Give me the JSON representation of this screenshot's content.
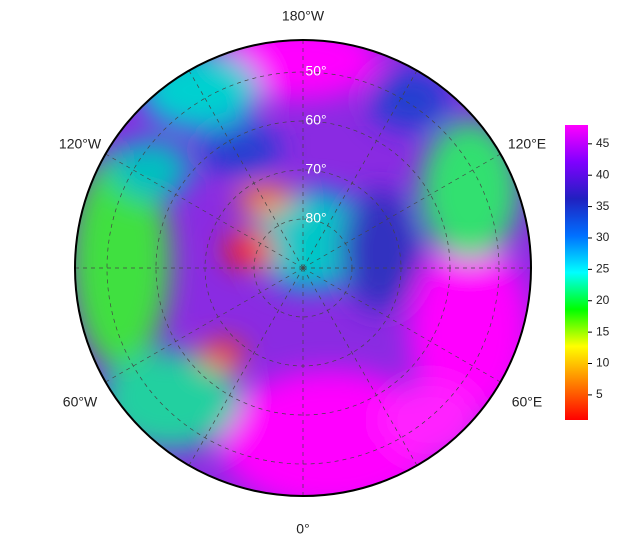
{
  "map": {
    "longitude_labels": [
      "180°W",
      "120°E",
      "60°E",
      "0°",
      "60°W",
      "120°W"
    ],
    "latitude_circles": [
      {
        "value": 50,
        "label": "50°"
      },
      {
        "value": 60,
        "label": "60°"
      },
      {
        "value": 70,
        "label": "70°"
      },
      {
        "value": 80,
        "label": "80°"
      }
    ],
    "colorbar": {
      "lim": [
        1,
        48
      ],
      "ticks": [
        5,
        10,
        15,
        20,
        25,
        30,
        35,
        40,
        45
      ],
      "colors": [
        "#ff0000",
        "#ff8000",
        "#ffff00",
        "#00ff00",
        "#00ffff",
        "#0070ff",
        "#2020c0",
        "#8000ff",
        "#ff00ff"
      ]
    }
  }
}
